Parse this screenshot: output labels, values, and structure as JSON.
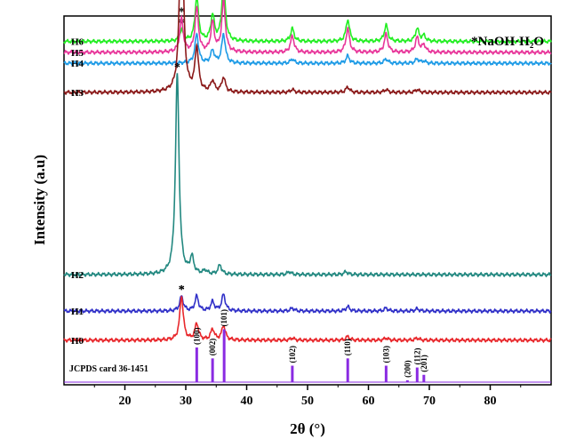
{
  "chart_data": {
    "type": "line",
    "title": "",
    "xlabel": "2θ (°)",
    "ylabel": "Intensity (a.u)",
    "xlim": [
      10,
      90
    ],
    "xticks": [
      20,
      30,
      40,
      50,
      60,
      70,
      80
    ],
    "xtick_labels": [
      "20",
      "30",
      "40",
      "50",
      "60",
      "70",
      "80"
    ],
    "annotation": "*NaOH·H₂O",
    "peak_marker": "*",
    "series": [
      {
        "name": "H6",
        "color": "#22ee22",
        "baseline": 0.94,
        "peaks": [
          [
            29.3,
            0.03
          ],
          [
            31.8,
            0.12
          ],
          [
            34.4,
            0.07
          ],
          [
            36.2,
            0.16
          ],
          [
            47.5,
            0.035
          ],
          [
            56.6,
            0.06
          ],
          [
            62.9,
            0.045
          ],
          [
            68.0,
            0.035
          ],
          [
            69.1,
            0.015
          ]
        ],
        "star_x": [
          29.3
        ]
      },
      {
        "name": "H5",
        "color": "#e8369a",
        "baseline": 0.91,
        "peaks": [
          [
            29.3,
            0.09
          ],
          [
            31.8,
            0.12
          ],
          [
            34.4,
            0.08
          ],
          [
            36.2,
            0.14
          ],
          [
            47.5,
            0.045
          ],
          [
            56.6,
            0.065
          ],
          [
            62.9,
            0.05
          ],
          [
            68.0,
            0.04
          ],
          [
            69.1,
            0.02
          ]
        ],
        "star_x": [
          29.3
        ]
      },
      {
        "name": "H4",
        "color": "#1e9be6",
        "baseline": 0.88,
        "peaks": [
          [
            31.8,
            0.08
          ],
          [
            34.4,
            0.035
          ],
          [
            36.2,
            0.08
          ],
          [
            47.5,
            0.012
          ],
          [
            56.6,
            0.02
          ],
          [
            62.9,
            0.012
          ],
          [
            68.0,
            0.012
          ],
          [
            69.1,
            0.006
          ]
        ],
        "star_x": []
      },
      {
        "name": "H3",
        "color": "#8b1a1a",
        "baseline": 0.8,
        "peaks": [
          [
            29.3,
            0.55
          ],
          [
            31.8,
            0.12
          ],
          [
            34.4,
            0.03
          ],
          [
            36.2,
            0.04
          ],
          [
            47.5,
            0.008
          ],
          [
            56.6,
            0.015
          ],
          [
            62.9,
            0.008
          ],
          [
            68.0,
            0.008
          ]
        ],
        "star_x": [
          29.3
        ]
      },
      {
        "name": "H2",
        "color": "#228880",
        "baseline": 0.3,
        "peaks": [
          [
            28.6,
            0.55
          ],
          [
            31.0,
            0.045
          ],
          [
            33.2,
            0.01
          ],
          [
            35.6,
            0.025
          ],
          [
            47.0,
            0.008
          ],
          [
            56.3,
            0.008
          ]
        ],
        "star_x": [
          28.6
        ]
      },
      {
        "name": "H1",
        "color": "#3030c8",
        "baseline": 0.2,
        "peaks": [
          [
            29.3,
            0.04
          ],
          [
            31.8,
            0.04
          ],
          [
            34.4,
            0.025
          ],
          [
            36.2,
            0.045
          ],
          [
            47.5,
            0.008
          ],
          [
            56.6,
            0.012
          ],
          [
            62.9,
            0.008
          ],
          [
            68.0,
            0.006
          ]
        ],
        "star_x": [
          29.3
        ]
      },
      {
        "name": "H0",
        "color": "#e8272b",
        "baseline": 0.12,
        "peaks": [
          [
            29.3,
            0.12
          ],
          [
            31.8,
            0.045
          ],
          [
            34.4,
            0.03
          ],
          [
            36.2,
            0.04
          ],
          [
            47.5,
            0.006
          ],
          [
            56.6,
            0.01
          ],
          [
            62.9,
            0.006
          ],
          [
            68.0,
            0.006
          ]
        ],
        "star_x": [
          29.3
        ]
      }
    ],
    "reference": {
      "label": "JCPDS card 36-1451",
      "color": "#8a2be2",
      "baseline": 0.0,
      "lines": [
        {
          "x": 31.8,
          "h": 0.1,
          "hkl": "(100)"
        },
        {
          "x": 34.4,
          "h": 0.07,
          "hkl": "(002)"
        },
        {
          "x": 36.3,
          "h": 0.15,
          "hkl": "(101)"
        },
        {
          "x": 47.5,
          "h": 0.05,
          "hkl": "(102)"
        },
        {
          "x": 56.6,
          "h": 0.07,
          "hkl": "(110)"
        },
        {
          "x": 62.9,
          "h": 0.05,
          "hkl": "(103)"
        },
        {
          "x": 66.4,
          "h": 0.01,
          "hkl": "(200)"
        },
        {
          "x": 68.0,
          "h": 0.045,
          "hkl": "(112)"
        },
        {
          "x": 69.1,
          "h": 0.025,
          "hkl": "(201)"
        }
      ]
    }
  }
}
